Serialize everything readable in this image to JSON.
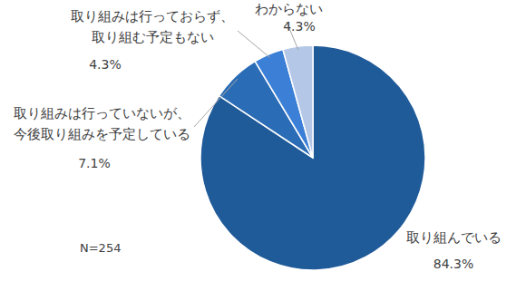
{
  "chart_data": {
    "type": "pie",
    "categories": [
      "取り組んでいる",
      "取り組みは行っていないが、\n今後取り組みを予定している",
      "取り組みは行っておらず、\n取り組む予定もない",
      "わからない"
    ],
    "values": [
      84.3,
      7.1,
      4.3,
      4.3
    ],
    "value_labels": [
      "84.3%",
      "7.1%",
      "4.3%",
      "4.3%"
    ],
    "colors": [
      "#1f5a99",
      "#2a6cb6",
      "#3b80d6",
      "#b4c7e7"
    ],
    "data_labels": true,
    "annotations": [
      "N=254"
    ]
  }
}
